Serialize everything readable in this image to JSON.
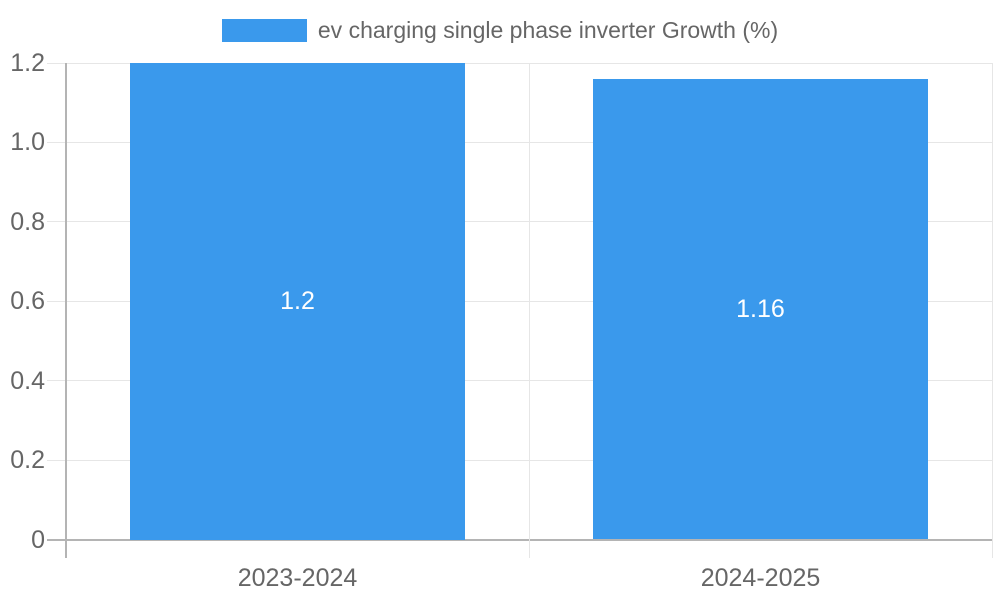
{
  "chart_data": {
    "type": "bar",
    "title": "",
    "legend": {
      "position": "top",
      "label": "ev charging single phase inverter Growth (%)"
    },
    "categories": [
      "2023-2024",
      "2024-2025"
    ],
    "series": [
      {
        "name": "ev charging single phase inverter Growth (%)",
        "values": [
          1.2,
          1.16
        ],
        "value_labels": [
          "1.2",
          "1.16"
        ],
        "color": "#3A99EC"
      }
    ],
    "y_axis": {
      "min": 0,
      "max": 1.2,
      "ticks": [
        {
          "value": 1.2,
          "label": "1.2"
        },
        {
          "value": 1.0,
          "label": "1.0"
        },
        {
          "value": 0.8,
          "label": "0.8"
        },
        {
          "value": 0.6,
          "label": "0.6"
        },
        {
          "value": 0.4,
          "label": "0.4"
        },
        {
          "value": 0.2,
          "label": "0.2"
        },
        {
          "value": 0,
          "label": "0"
        }
      ]
    },
    "grid": true,
    "colors": {
      "bar": "#3A99EC",
      "gridline": "#E6E6E6",
      "axis": "#B4B4B4",
      "tick_text": "#666666",
      "value_label": "#FFFFFF",
      "background": "#FFFFFF"
    }
  }
}
